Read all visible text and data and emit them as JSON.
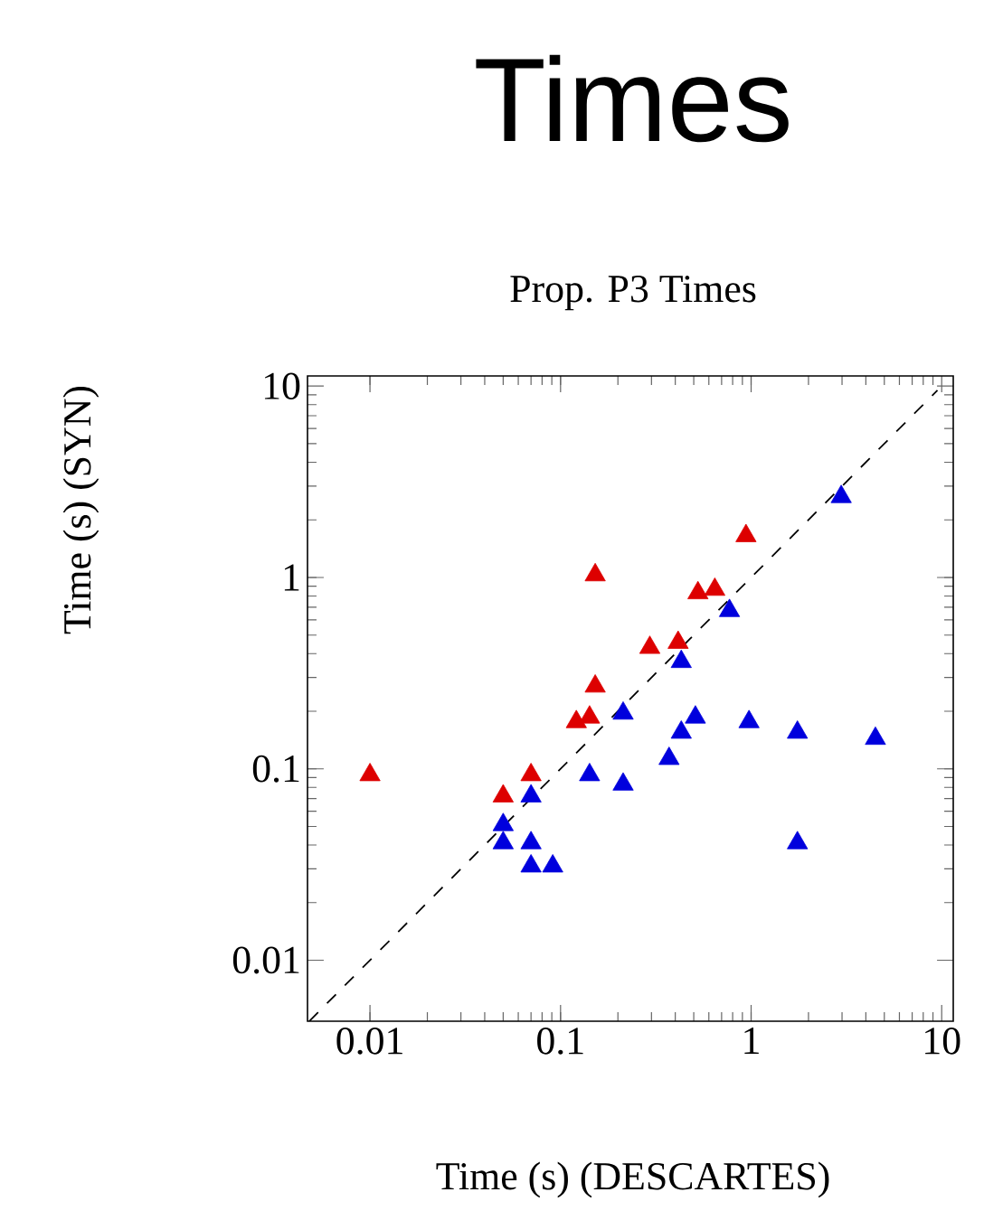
{
  "chart_data": {
    "type": "scatter",
    "title": "Times",
    "subtitle": "Prop. P3 Times",
    "xlabel": "Time (s) (DESCARTES)",
    "ylabel": "Time (s) (SYN)",
    "log": "xy",
    "grid": false,
    "marker": "triangle",
    "xlim": [
      0.0047,
      11.5
    ],
    "ylim": [
      0.0048,
      11.3
    ],
    "xticks": [
      0.01,
      0.1,
      1,
      10
    ],
    "yticks": [
      0.01,
      0.1,
      1,
      10
    ],
    "series": [
      {
        "color": "#dd0000",
        "x": [
          0.01,
          0.05,
          0.07,
          0.121,
          0.142,
          0.152,
          0.152,
          0.294,
          0.414,
          0.526,
          0.645,
          0.94
        ],
        "values": [
          0.093,
          0.072,
          0.093,
          0.176,
          0.186,
          0.27,
          1.03,
          0.43,
          0.457,
          0.83,
          0.865,
          1.65
        ]
      },
      {
        "color": "#0000dd",
        "x": [
          0.05,
          0.05,
          0.07,
          0.07,
          0.07,
          0.091,
          0.142,
          0.213,
          0.213,
          0.371,
          0.43,
          0.51,
          0.43,
          0.77,
          0.975,
          1.75,
          1.75,
          2.97,
          4.49
        ],
        "values": [
          0.051,
          0.041,
          0.072,
          0.041,
          0.031,
          0.031,
          0.093,
          0.083,
          0.195,
          0.113,
          0.155,
          0.186,
          0.363,
          0.67,
          0.176,
          0.155,
          0.041,
          2.64,
          0.144
        ]
      },
      {
        "type": "line",
        "color": "#000000",
        "line_style": "dashed",
        "marker": "none",
        "x": [
          0.0048,
          9.5
        ],
        "values": [
          0.0048,
          9.5
        ]
      }
    ]
  }
}
